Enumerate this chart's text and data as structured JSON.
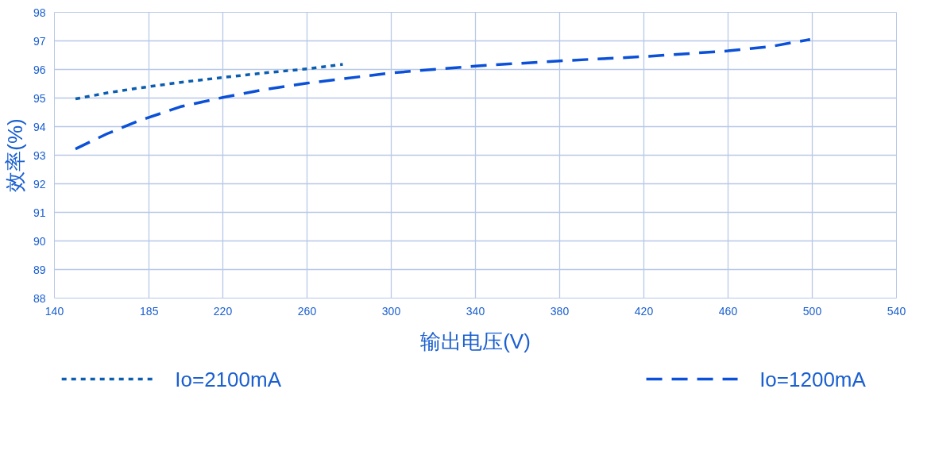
{
  "chart_data": {
    "type": "line",
    "xlabel": "输出电压(V)",
    "ylabel": "效率(%)",
    "xlim": [
      140,
      540
    ],
    "xticks": [
      140,
      185,
      220,
      260,
      300,
      340,
      380,
      420,
      460,
      500,
      540
    ],
    "ylim": [
      88,
      98
    ],
    "yticks": [
      88,
      89,
      90,
      91,
      92,
      93,
      94,
      95,
      96,
      97,
      98
    ],
    "grid": true,
    "legend": "bottom",
    "marker": "none",
    "series": [
      {
        "name": "Io=2100mA",
        "color": "#0a5db0",
        "line_style": "dotted",
        "x": [
          150,
          165,
          180,
          200,
          220,
          240,
          260,
          277
        ],
        "values": [
          94.97,
          95.18,
          95.35,
          95.55,
          95.72,
          95.88,
          96.02,
          96.18
        ]
      },
      {
        "name": "Io=1200mA",
        "color": "#0a50d8",
        "line_style": "dashed",
        "x": [
          150,
          165,
          180,
          200,
          220,
          240,
          260,
          300,
          340,
          380,
          420,
          460,
          480,
          499
        ],
        "values": [
          93.22,
          93.75,
          94.2,
          94.7,
          95.02,
          95.3,
          95.52,
          95.88,
          96.12,
          96.3,
          96.45,
          96.65,
          96.8,
          97.05
        ]
      }
    ]
  }
}
